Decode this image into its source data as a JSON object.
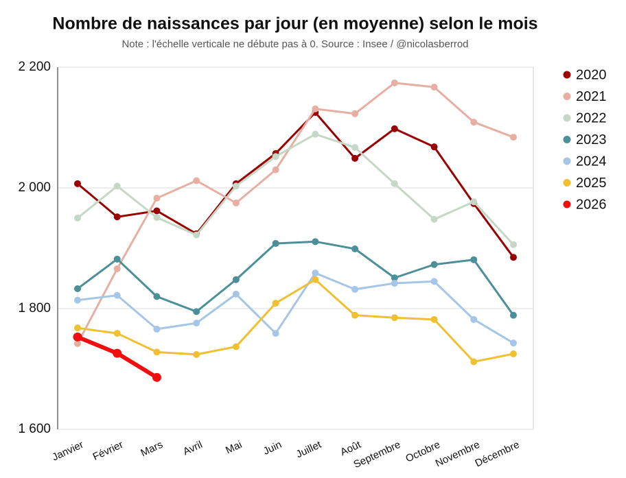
{
  "chart_data": {
    "type": "line",
    "title": "Nombre de naissances par jour (en moyenne) selon le mois",
    "subtitle": "Note : l'échelle verticale ne débute pas à 0. Source : Insee / @nicolasberrod",
    "categories": [
      "Janvier",
      "Février",
      "Mars",
      "Avril",
      "Mai",
      "Juin",
      "Juillet",
      "Août",
      "Septembre",
      "Octobre",
      "Novembre",
      "Décembre"
    ],
    "ylim": [
      1600,
      2200
    ],
    "yticks": [
      {
        "value": 1600,
        "label": "1 600"
      },
      {
        "value": 1800,
        "label": "1 800"
      },
      {
        "value": 2000,
        "label": "2 000"
      },
      {
        "value": 2200,
        "label": "2 200"
      }
    ],
    "grid": true,
    "legend": "right",
    "series": [
      {
        "name": "2020",
        "color": "#990000",
        "line_width": 3,
        "values": [
          2007,
          1952,
          1962,
          1924,
          2007,
          2057,
          2125,
          2049,
          2098,
          2068,
          1974,
          1885
        ]
      },
      {
        "name": "2021",
        "color": "#e6afa2",
        "line_width": 3,
        "values": [
          1742,
          1866,
          1983,
          2012,
          1975,
          2030,
          2131,
          2123,
          2174,
          2167,
          2109,
          2084
        ]
      },
      {
        "name": "2022",
        "color": "#c5d7c5",
        "line_width": 3,
        "values": [
          1950,
          2003,
          1951,
          1922,
          2003,
          2052,
          2089,
          2067,
          2007,
          1948,
          1977,
          1906
        ]
      },
      {
        "name": "2023",
        "color": "#4b8f99",
        "line_width": 3,
        "values": [
          1833,
          1882,
          1820,
          1795,
          1848,
          1908,
          1911,
          1899,
          1851,
          1873,
          1881,
          1789
        ]
      },
      {
        "name": "2024",
        "color": "#a5c6e6",
        "line_width": 3,
        "values": [
          1814,
          1822,
          1766,
          1776,
          1824,
          1759,
          1859,
          1832,
          1842,
          1845,
          1782,
          1743
        ]
      },
      {
        "name": "2025",
        "color": "#f0c030",
        "line_width": 3,
        "values": [
          1768,
          1759,
          1728,
          1724,
          1737,
          1809,
          1848,
          1789,
          1785,
          1782,
          1712,
          1725
        ]
      },
      {
        "name": "2026",
        "color": "#f00e0e",
        "line_width": 6,
        "values": [
          1753,
          1726,
          1686,
          null,
          null,
          null,
          null,
          null,
          null,
          null,
          null,
          null
        ]
      }
    ]
  }
}
